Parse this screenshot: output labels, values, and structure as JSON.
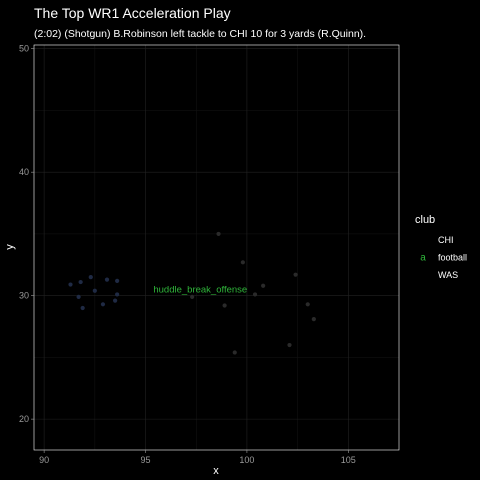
{
  "chart_data": {
    "type": "scatter",
    "title": "The Top WR1 Acceleration Play",
    "subtitle": "(2:02) (Shotgun) B.Robinson left tackle to CHI 10 for 3 yards (R.Quinn).",
    "xlabel": "x",
    "ylabel": "y",
    "xlim": [
      89.5,
      107.5
    ],
    "ylim": [
      17.5,
      50.3
    ],
    "x_ticks": [
      90,
      95,
      100,
      105
    ],
    "y_ticks": [
      20,
      30,
      40,
      50
    ],
    "grid": true,
    "legend": {
      "title": "club",
      "placement": "right",
      "entries": [
        {
          "label": "CHI",
          "glyph": "",
          "color": "#1f2a44"
        },
        {
          "label": "football",
          "glyph": "a",
          "color": "#2fb53a"
        },
        {
          "label": "WAS",
          "glyph": "",
          "color": "#2a2a2a"
        }
      ]
    },
    "series": [
      {
        "name": "CHI",
        "color": "#1f2a44",
        "points": [
          [
            91.3,
            30.9
          ],
          [
            91.8,
            31.1
          ],
          [
            92.3,
            31.5
          ],
          [
            93.1,
            31.3
          ],
          [
            93.6,
            31.2
          ],
          [
            91.7,
            29.9
          ],
          [
            92.5,
            30.4
          ],
          [
            93.6,
            30.1
          ],
          [
            91.9,
            29.0
          ],
          [
            92.9,
            29.3
          ],
          [
            93.5,
            29.6
          ]
        ]
      },
      {
        "name": "WAS",
        "color": "#2a2a2a",
        "points": [
          [
            98.6,
            35.0
          ],
          [
            99.8,
            32.7
          ],
          [
            102.4,
            31.7
          ],
          [
            100.8,
            30.8
          ],
          [
            103.0,
            29.3
          ],
          [
            98.9,
            29.2
          ],
          [
            100.4,
            30.1
          ],
          [
            103.3,
            28.1
          ],
          [
            102.1,
            26.0
          ],
          [
            99.4,
            25.4
          ],
          [
            97.3,
            29.9
          ]
        ]
      }
    ],
    "annotations": [
      {
        "text": "huddle_break_offense",
        "x": 97.7,
        "y": 30.5,
        "color": "#2fb53a"
      }
    ]
  }
}
